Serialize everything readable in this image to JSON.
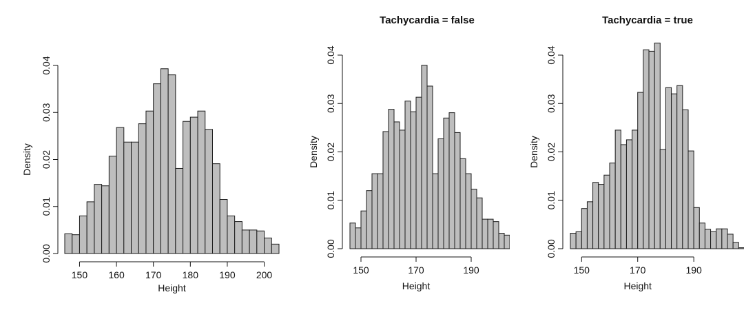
{
  "chart_data": [
    {
      "type": "bar",
      "title": "",
      "xlabel": "Height",
      "ylabel": "Density",
      "xlim": [
        146,
        204
      ],
      "ylim": [
        0,
        0.04
      ],
      "bin_width": 2,
      "bin_start": 146,
      "xticks": [
        150,
        160,
        170,
        180,
        190,
        200
      ],
      "yticks": [
        0.0,
        0.01,
        0.02,
        0.03,
        0.04
      ],
      "ytick_labels": [
        "0.00",
        "0.01",
        "0.02",
        "0.03",
        "0.04"
      ],
      "values": [
        0.0042,
        0.004,
        0.008,
        0.011,
        0.0147,
        0.0144,
        0.0207,
        0.0268,
        0.0237,
        0.0237,
        0.0276,
        0.0303,
        0.0361,
        0.0393,
        0.038,
        0.0181,
        0.0281,
        0.029,
        0.0303,
        0.0264,
        0.0191,
        0.0115,
        0.008,
        0.0068,
        0.005,
        0.005,
        0.0048,
        0.0033,
        0.002
      ]
    },
    {
      "type": "bar",
      "title": "Tachycardia = false",
      "xlabel": "Height",
      "ylabel": "Density",
      "xlim": [
        146,
        202
      ],
      "ylim": [
        0,
        0.04
      ],
      "bin_width": 2,
      "bin_start": 146,
      "xticks": [
        150,
        170,
        190
      ],
      "yticks": [
        0.0,
        0.01,
        0.02,
        0.03,
        0.04
      ],
      "ytick_labels": [
        "0.00",
        "0.01",
        "0.02",
        "0.03",
        "0.04"
      ],
      "values": [
        0.0053,
        0.0043,
        0.0078,
        0.012,
        0.0155,
        0.0155,
        0.0242,
        0.0288,
        0.0262,
        0.0245,
        0.0305,
        0.0283,
        0.0313,
        0.0379,
        0.0336,
        0.0155,
        0.0227,
        0.027,
        0.0281,
        0.024,
        0.0186,
        0.0155,
        0.0123,
        0.0105,
        0.0061,
        0.0061,
        0.0056,
        0.0032,
        0.0028,
        0.0005
      ]
    },
    {
      "type": "bar",
      "title": "Tachycardia = true",
      "xlabel": "Height",
      "ylabel": "Density",
      "xlim": [
        146,
        202
      ],
      "ylim": [
        0,
        0.04
      ],
      "bin_width": 2,
      "bin_start": 146,
      "xticks": [
        150,
        170,
        190
      ],
      "yticks": [
        0.0,
        0.01,
        0.02,
        0.03,
        0.04
      ],
      "ytick_labels": [
        "0.00",
        "0.01",
        "0.02",
        "0.03",
        "0.04"
      ],
      "values": [
        0.0032,
        0.0035,
        0.0083,
        0.0097,
        0.0137,
        0.0133,
        0.0152,
        0.0177,
        0.0245,
        0.0215,
        0.0225,
        0.0245,
        0.0323,
        0.0411,
        0.0408,
        0.0425,
        0.0205,
        0.0333,
        0.032,
        0.0337,
        0.0287,
        0.0202,
        0.0085,
        0.0053,
        0.004,
        0.0035,
        0.0041,
        0.0041,
        0.003,
        0.0013,
        0.0002
      ]
    }
  ]
}
